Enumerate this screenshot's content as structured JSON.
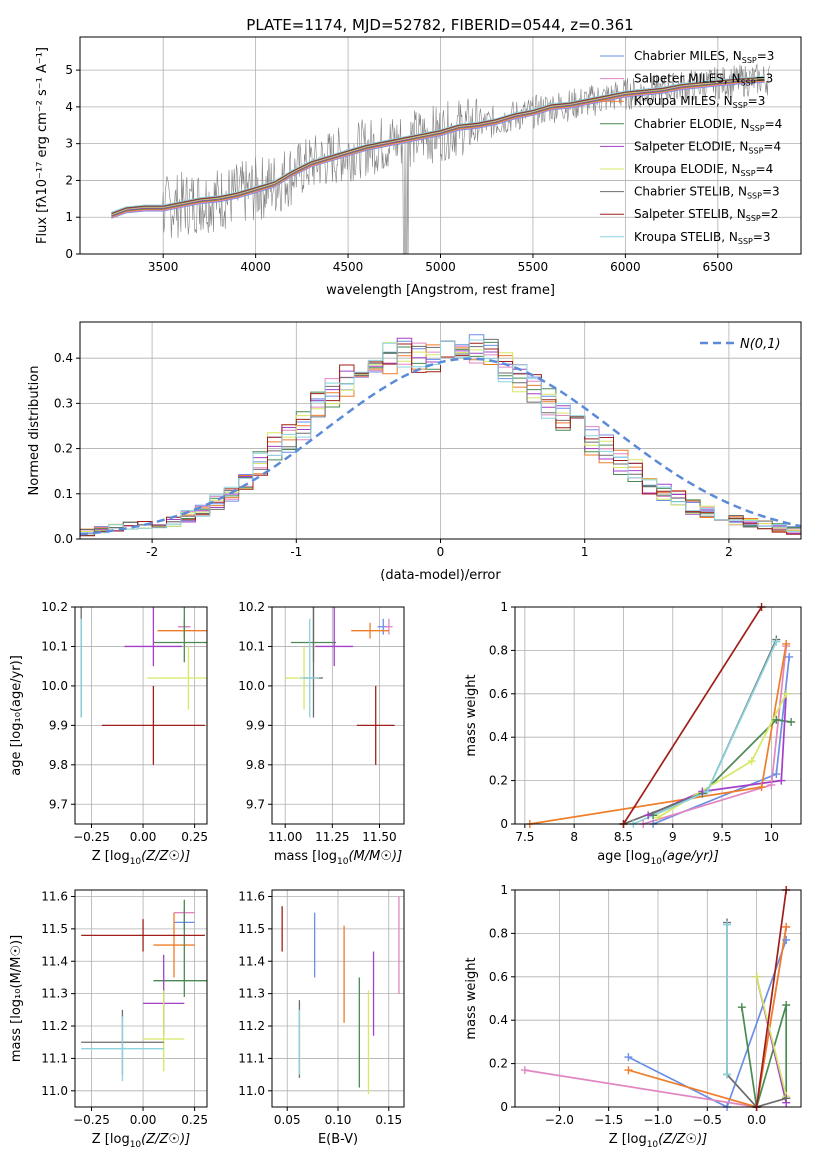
{
  "title": "PLATE=1174, MJD=52782, FIBERID=0544, z=0.361",
  "colors": [
    "#6b8ee6",
    "#e286c2",
    "#ef7d2a",
    "#4a8a52",
    "#a440c8",
    "#d6e864",
    "#6c6c6c",
    "#a01f1a",
    "#8bd3df"
  ],
  "spectrum_color": "#808080",
  "chart_data": [
    {
      "id": "spectrum",
      "type": "line",
      "xlabel": "wavelength [Angstrom, rest frame]",
      "ylabel_text": "Flux [f",
      "ylabel_unit": "10",
      "ylabel_tail": " erg cm",
      "ylabel_end": " s",
      "xlim": [
        3050,
        6950
      ],
      "ylim": [
        0,
        5.9
      ],
      "xticks": [
        3500,
        4000,
        4500,
        5000,
        5500,
        6000,
        6500
      ],
      "yticks": [
        0,
        1,
        2,
        3,
        4,
        5
      ],
      "model_points": [
        [
          3220,
          1.05
        ],
        [
          3300,
          1.2
        ],
        [
          3400,
          1.25
        ],
        [
          3500,
          1.25
        ],
        [
          3600,
          1.35
        ],
        [
          3700,
          1.45
        ],
        [
          3800,
          1.5
        ],
        [
          3900,
          1.6
        ],
        [
          4000,
          1.75
        ],
        [
          4100,
          1.9
        ],
        [
          4200,
          2.2
        ],
        [
          4300,
          2.45
        ],
        [
          4400,
          2.6
        ],
        [
          4500,
          2.75
        ],
        [
          4600,
          2.9
        ],
        [
          4700,
          3.0
        ],
        [
          4800,
          3.1
        ],
        [
          4900,
          3.2
        ],
        [
          5000,
          3.3
        ],
        [
          5100,
          3.45
        ],
        [
          5200,
          3.5
        ],
        [
          5300,
          3.6
        ],
        [
          5400,
          3.75
        ],
        [
          5500,
          3.85
        ],
        [
          5600,
          4.0
        ],
        [
          5700,
          4.05
        ],
        [
          5800,
          4.15
        ],
        [
          5900,
          4.25
        ],
        [
          6000,
          4.35
        ],
        [
          6100,
          4.4
        ],
        [
          6200,
          4.45
        ],
        [
          6300,
          4.55
        ],
        [
          6400,
          4.6
        ],
        [
          6500,
          4.65
        ],
        [
          6600,
          4.7
        ],
        [
          6750,
          4.75
        ]
      ],
      "legend": [
        {
          "label": "Chabrier MILES, N",
          "sub": "SSP",
          "end": "=3"
        },
        {
          "label": "Salpeter MILES, N",
          "sub": "SSP",
          "end": "=3"
        },
        {
          "label": "Kroupa MILES, N",
          "sub": "SSP",
          "end": "=3"
        },
        {
          "label": "Chabrier ELODIE, N",
          "sub": "SSP",
          "end": "=4"
        },
        {
          "label": "Salpeter ELODIE, N",
          "sub": "SSP",
          "end": "=4"
        },
        {
          "label": "Kroupa ELODIE, N",
          "sub": "SSP",
          "end": "=4"
        },
        {
          "label": "Chabrier STELIB, N",
          "sub": "SSP",
          "end": "=3"
        },
        {
          "label": "Salpeter STELIB, N",
          "sub": "SSP",
          "end": "=2"
        },
        {
          "label": "Kroupa STELIB, N",
          "sub": "SSP",
          "end": "=3"
        }
      ]
    },
    {
      "id": "residuals",
      "type": "histogram",
      "xlabel": "(data-model)/error",
      "ylabel": "Normed distribution",
      "xlim": [
        -2.5,
        2.5
      ],
      "ylim": [
        0,
        0.48
      ],
      "xticks": [
        -2,
        -1,
        0,
        1,
        2
      ],
      "yticks": [
        0.0,
        0.1,
        0.2,
        0.3,
        0.4
      ],
      "legend": "N(0,1)",
      "bin_edges": [
        -2.5,
        -2.4,
        -2.3,
        -2.2,
        -2.1,
        -2.0,
        -1.9,
        -1.8,
        -1.7,
        -1.6,
        -1.5,
        -1.4,
        -1.3,
        -1.2,
        -1.1,
        -1.0,
        -0.9,
        -0.8,
        -0.7,
        -0.6,
        -0.5,
        -0.4,
        -0.3,
        -0.2,
        -0.1,
        0.0,
        0.1,
        0.2,
        0.3,
        0.4,
        0.5,
        0.6,
        0.7,
        0.8,
        0.9,
        1.0,
        1.1,
        1.2,
        1.3,
        1.4,
        1.5,
        1.6,
        1.7,
        1.8,
        1.9,
        2.0,
        2.1,
        2.2,
        2.3,
        2.4,
        2.5
      ],
      "heights": [
        0.015,
        0.02,
        0.025,
        0.03,
        0.03,
        0.035,
        0.04,
        0.05,
        0.06,
        0.08,
        0.1,
        0.13,
        0.17,
        0.2,
        0.22,
        0.25,
        0.29,
        0.32,
        0.35,
        0.37,
        0.39,
        0.4,
        0.41,
        0.4,
        0.4,
        0.41,
        0.42,
        0.42,
        0.41,
        0.38,
        0.36,
        0.33,
        0.3,
        0.27,
        0.25,
        0.22,
        0.2,
        0.17,
        0.15,
        0.12,
        0.1,
        0.09,
        0.07,
        0.06,
        0.05,
        0.04,
        0.035,
        0.03,
        0.025,
        0.02
      ]
    },
    {
      "id": "age_vs_Z",
      "type": "errorbar",
      "xlabel": "Z [log",
      "ylabel": "age",
      "xlim": [
        -0.33,
        0.31
      ],
      "ylim": [
        9.65,
        10.2
      ],
      "xticks": [
        -0.25,
        0.0,
        0.25
      ],
      "xtick_labels": [
        "−0.25",
        "0.00",
        "0.25"
      ],
      "yticks": [
        9.7,
        9.8,
        9.9,
        10.0,
        10.1,
        10.2
      ],
      "points": [
        [
          0.2,
          10.15,
          0.03,
          0.02,
          0.03
        ],
        [
          0.2,
          10.15,
          0.03,
          0.02,
          0.02
        ],
        [
          0.2,
          10.14,
          0.13,
          0.02,
          0.02
        ],
        [
          0.2,
          10.11,
          0.15,
          0.2,
          0.05
        ],
        [
          0.05,
          10.1,
          0.14,
          0.18,
          0.05
        ],
        [
          0.22,
          10.02,
          0.2,
          0.08,
          0.08
        ],
        [
          -0.3,
          10.02,
          0.0,
          0.25,
          0.1
        ],
        [
          0.05,
          9.9,
          0.25,
          0.1,
          0.1
        ],
        [
          -0.3,
          10.02,
          0.0,
          0.15,
          0.1
        ]
      ]
    },
    {
      "id": "age_vs_mass",
      "type": "errorbar",
      "xlabel": "mass [log",
      "xlim": [
        10.93,
        11.63
      ],
      "ylim": [
        9.65,
        10.2
      ],
      "xticks": [
        11.0,
        11.25,
        11.5
      ],
      "xtick_labels": [
        "11.00",
        "11.25",
        "11.50"
      ],
      "yticks": [
        9.7,
        9.8,
        9.9,
        10.0,
        10.1,
        10.2
      ],
      "points": [
        [
          11.52,
          10.15,
          0.03,
          0.02,
          0.02
        ],
        [
          11.55,
          10.15,
          0.02,
          0.02,
          0.02
        ],
        [
          11.45,
          10.14,
          0.1,
          0.02,
          0.02
        ],
        [
          11.15,
          10.11,
          0.12,
          0.2,
          0.05
        ],
        [
          11.26,
          10.1,
          0.1,
          0.18,
          0.05
        ],
        [
          11.1,
          10.02,
          0.1,
          0.08,
          0.08
        ],
        [
          11.15,
          10.02,
          0.05,
          0.25,
          0.1
        ],
        [
          11.48,
          9.9,
          0.1,
          0.1,
          0.1
        ],
        [
          11.13,
          10.02,
          0.05,
          0.15,
          0.1
        ]
      ]
    },
    {
      "id": "massweight_vs_age",
      "type": "line",
      "xlabel": "age  [log",
      "ylabel": "mass weight",
      "xlim": [
        7.4,
        10.3
      ],
      "ylim": [
        0,
        1.0
      ],
      "xticks": [
        7.5,
        8.0,
        8.5,
        9.0,
        9.5,
        10.0
      ],
      "yticks": [
        0.0,
        0.2,
        0.4,
        0.6,
        0.8,
        1.0
      ],
      "series": [
        [
          [
            8.8,
            0.0
          ],
          [
            10.05,
            0.23
          ],
          [
            10.18,
            0.77
          ]
        ],
        [
          [
            8.7,
            0.0
          ],
          [
            10.0,
            0.18
          ],
          [
            10.15,
            0.82
          ]
        ],
        [
          [
            7.55,
            0.0
          ],
          [
            9.9,
            0.17
          ],
          [
            10.15,
            0.83
          ]
        ],
        [
          [
            8.8,
            0.04
          ],
          [
            9.3,
            0.14
          ],
          [
            10.05,
            0.48
          ],
          [
            10.2,
            0.47
          ]
        ],
        [
          [
            8.75,
            0.04
          ],
          [
            9.3,
            0.15
          ],
          [
            10.1,
            0.2
          ],
          [
            10.15,
            0.6
          ]
        ],
        [
          [
            8.85,
            0.03
          ],
          [
            9.8,
            0.29
          ],
          [
            10.15,
            0.6
          ]
        ],
        [
          [
            8.5,
            0.0
          ],
          [
            9.35,
            0.15
          ],
          [
            10.05,
            0.85
          ]
        ],
        [
          [
            8.5,
            0.0
          ],
          [
            9.9,
            1.0
          ]
        ],
        [
          [
            8.6,
            0.0
          ],
          [
            9.35,
            0.15
          ],
          [
            10.05,
            0.84
          ]
        ]
      ]
    },
    {
      "id": "mass_vs_Z",
      "type": "errorbar",
      "xlabel": "Z [log",
      "ylabel": "mass [log",
      "xlim": [
        -0.33,
        0.31
      ],
      "ylim": [
        10.95,
        11.62
      ],
      "xticks": [
        -0.25,
        0.0,
        0.25
      ],
      "xtick_labels": [
        "−0.25",
        "0.00",
        "0.25"
      ],
      "yticks": [
        11.0,
        11.1,
        11.2,
        11.3,
        11.4,
        11.5,
        11.6
      ],
      "points": [
        [
          0.2,
          11.52,
          0.05,
          0.02,
          0.02
        ],
        [
          0.2,
          11.55,
          0.05,
          0.02,
          0.02
        ],
        [
          0.15,
          11.45,
          0.1,
          0.1,
          0.1
        ],
        [
          0.2,
          11.34,
          0.15,
          0.25,
          0.05
        ],
        [
          0.1,
          11.27,
          0.1,
          0.15,
          0.1
        ],
        [
          0.1,
          11.16,
          0.1,
          0.15,
          0.1
        ],
        [
          -0.1,
          11.15,
          0.2,
          0.1,
          0.1
        ],
        [
          0.0,
          11.48,
          0.3,
          0.05,
          0.05
        ],
        [
          -0.1,
          11.13,
          0.2,
          0.1,
          0.1
        ]
      ]
    },
    {
      "id": "mass_vs_ebv",
      "type": "errorbar",
      "xlabel": "E(B-V)",
      "xlim": [
        0.035,
        0.165
      ],
      "ylim": [
        10.95,
        11.62
      ],
      "xticks": [
        0.05,
        0.1,
        0.15
      ],
      "xtick_labels": [
        "0.05",
        "0.10",
        "0.15"
      ],
      "yticks": [
        11.0,
        11.1,
        11.2,
        11.3,
        11.4,
        11.5,
        11.6
      ],
      "points": [
        [
          0.077,
          11.45,
          0,
          0.1,
          0.1
        ],
        [
          0.16,
          11.45,
          0,
          0.15,
          0.15
        ],
        [
          0.106,
          11.36,
          0,
          0.15,
          0.15
        ],
        [
          0.121,
          11.18,
          0,
          0.17,
          0.17
        ],
        [
          0.135,
          11.3,
          0,
          0.13,
          0.13
        ],
        [
          0.13,
          11.15,
          0,
          0.16,
          0.16
        ],
        [
          0.062,
          11.16,
          0,
          0.12,
          0.12
        ],
        [
          0.045,
          11.5,
          0,
          0.07,
          0.07
        ],
        [
          0.062,
          11.15,
          0,
          0.1,
          0.1
        ]
      ]
    },
    {
      "id": "massweight_vs_Z",
      "type": "line",
      "xlabel": "Z [log",
      "ylabel": "mass weight",
      "xlim": [
        -2.45,
        0.45
      ],
      "ylim": [
        0,
        1.0
      ],
      "xticks": [
        -2.0,
        -1.5,
        -1.0,
        -0.5,
        0.0
      ],
      "xtick_labels": [
        "−2.0",
        "−1.5",
        "−1.0",
        "−0.5",
        "0.0"
      ],
      "yticks": [
        0.0,
        0.2,
        0.4,
        0.6,
        0.8,
        1.0
      ],
      "series": [
        [
          [
            -1.3,
            0.23
          ],
          [
            -0.3,
            0.0
          ],
          [
            0.3,
            0.77
          ]
        ],
        [
          [
            -2.35,
            0.17
          ],
          [
            0.0,
            0.0
          ],
          [
            0.3,
            0.83
          ]
        ],
        [
          [
            -1.3,
            0.17
          ],
          [
            0.0,
            0.0
          ],
          [
            0.3,
            0.83
          ]
        ],
        [
          [
            -0.15,
            0.46
          ],
          [
            0.0,
            0.0
          ],
          [
            0.3,
            0.47
          ],
          [
            0.3,
            0.04
          ]
        ],
        [
          [
            0.0,
            0.6
          ],
          [
            0.3,
            0.02
          ]
        ],
        [
          [
            0.0,
            0.6
          ],
          [
            0.3,
            0.05
          ]
        ],
        [
          [
            -0.3,
            0.85
          ],
          [
            -0.3,
            0.15
          ],
          [
            0.0,
            0.0
          ],
          [
            0.3,
            0.04
          ]
        ],
        [
          [
            0.0,
            0.0
          ],
          [
            0.3,
            1.0
          ]
        ],
        [
          [
            -0.3,
            0.84
          ],
          [
            -0.3,
            0.15
          ]
        ]
      ]
    }
  ]
}
